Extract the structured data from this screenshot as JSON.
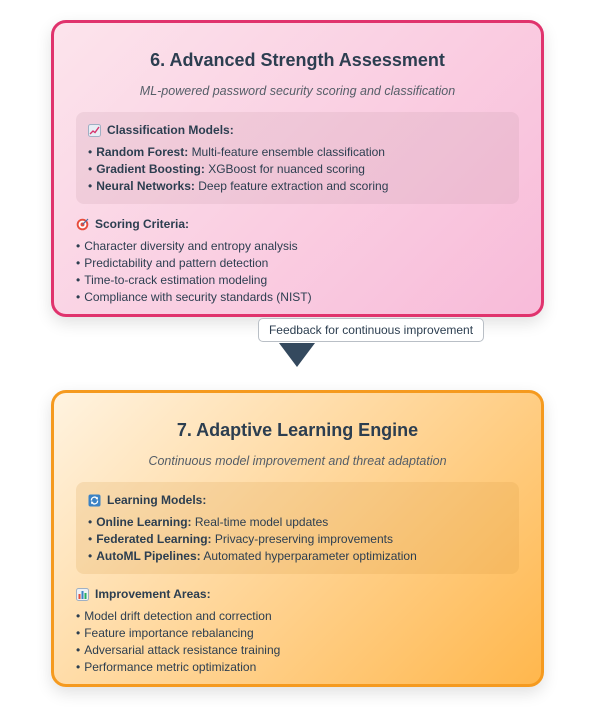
{
  "step6": {
    "title": "6. Advanced Strength Assessment",
    "subtitle": "ML-powered password security scoring and classification",
    "models_heading": "Classification Models:",
    "models_icon": "chart-increasing-icon",
    "models": [
      {
        "name": "Random Forest:",
        "desc": "Multi-feature ensemble classification"
      },
      {
        "name": "Gradient Boosting:",
        "desc": "XGBoost for nuanced scoring"
      },
      {
        "name": "Neural Networks:",
        "desc": "Deep feature extraction and scoring"
      }
    ],
    "criteria_heading": "Scoring Criteria:",
    "criteria_icon": "target-icon",
    "criteria": [
      "Character diversity and entropy analysis",
      "Predictability and pattern detection",
      "Time-to-crack estimation modeling",
      "Compliance with security standards (NIST)"
    ]
  },
  "connector": {
    "label": "Feedback for continuous improvement",
    "arrow_color": "#34495e"
  },
  "step7": {
    "title": "7. Adaptive Learning Engine",
    "subtitle": "Continuous model improvement and threat adaptation",
    "models_heading": "Learning Models:",
    "models_icon": "arrows-cycle-icon",
    "models": [
      {
        "name": "Online Learning:",
        "desc": "Real-time model updates"
      },
      {
        "name": "Federated Learning:",
        "desc": "Privacy-preserving improvements"
      },
      {
        "name": "AutoML Pipelines:",
        "desc": "Automated hyperparameter optimization"
      }
    ],
    "criteria_heading": "Improvement Areas:",
    "criteria_icon": "bar-chart-icon",
    "criteria": [
      "Model drift detection and correction",
      "Feature importance rebalancing",
      "Adversarial attack resistance training",
      "Performance metric optimization"
    ]
  },
  "colors": {
    "pink_border": "#e0336d",
    "orange_border": "#f59a1f",
    "text": "#2c3e50"
  }
}
